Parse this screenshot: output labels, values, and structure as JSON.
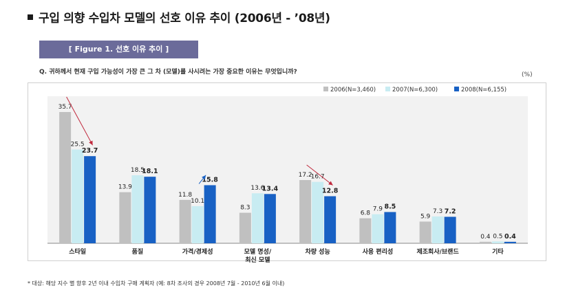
{
  "header": {
    "title": "구입 의향 수입차 모델의 선호 이유 추이 (2006년 - ’08년)",
    "figure_label": "[ Figure 1. 선호 이유 추이 ]",
    "question": "Q. 귀하께서 현재 구입 가능성이 가장 큰 그 차 (모델)를 사시려는 가장 중요한 이유는 무엇입니까?",
    "unit": "(%)"
  },
  "footnote": "* 대상: 해당 지수 별 향후 2년 이내 수입차 구매 계획자 (예: 8차 조사의 경우 2008년 7월 - 2010년 6월 이내)",
  "colors": {
    "s2006": "#c0c0c0",
    "s2007": "#c8ecf2",
    "s2008": "#1861c4",
    "arrow_down": "#c0283c",
    "arrow_up": "#1861c4"
  },
  "chart_data": {
    "type": "bar",
    "categories": [
      "스타일",
      "품질",
      "가격/경제성",
      "모델 명성/\n최신 모델",
      "차량 성능",
      "사용 편리성",
      "제조회사/브랜드",
      "기타"
    ],
    "series": [
      {
        "name": "2006(N=3,460)",
        "values": [
          35.7,
          13.9,
          11.8,
          8.3,
          17.2,
          6.8,
          5.9,
          0.4
        ]
      },
      {
        "name": "2007(N=6,300)",
        "values": [
          25.5,
          18.5,
          10.1,
          13.6,
          16.7,
          7.9,
          7.3,
          0.5
        ]
      },
      {
        "name": "2008(N=6,155)",
        "values": [
          23.7,
          18.1,
          15.8,
          13.4,
          12.8,
          8.5,
          7.2,
          0.4
        ]
      }
    ],
    "ylim": [
      0,
      40
    ],
    "legend_position": "top-right",
    "grid": false,
    "annotations": [
      {
        "type": "trend-arrow",
        "category": "스타일",
        "direction": "down"
      },
      {
        "type": "trend-arrow",
        "category": "가격/경제성",
        "direction": "up"
      },
      {
        "type": "trend-arrow",
        "category": "차량 성능",
        "direction": "down"
      }
    ]
  }
}
